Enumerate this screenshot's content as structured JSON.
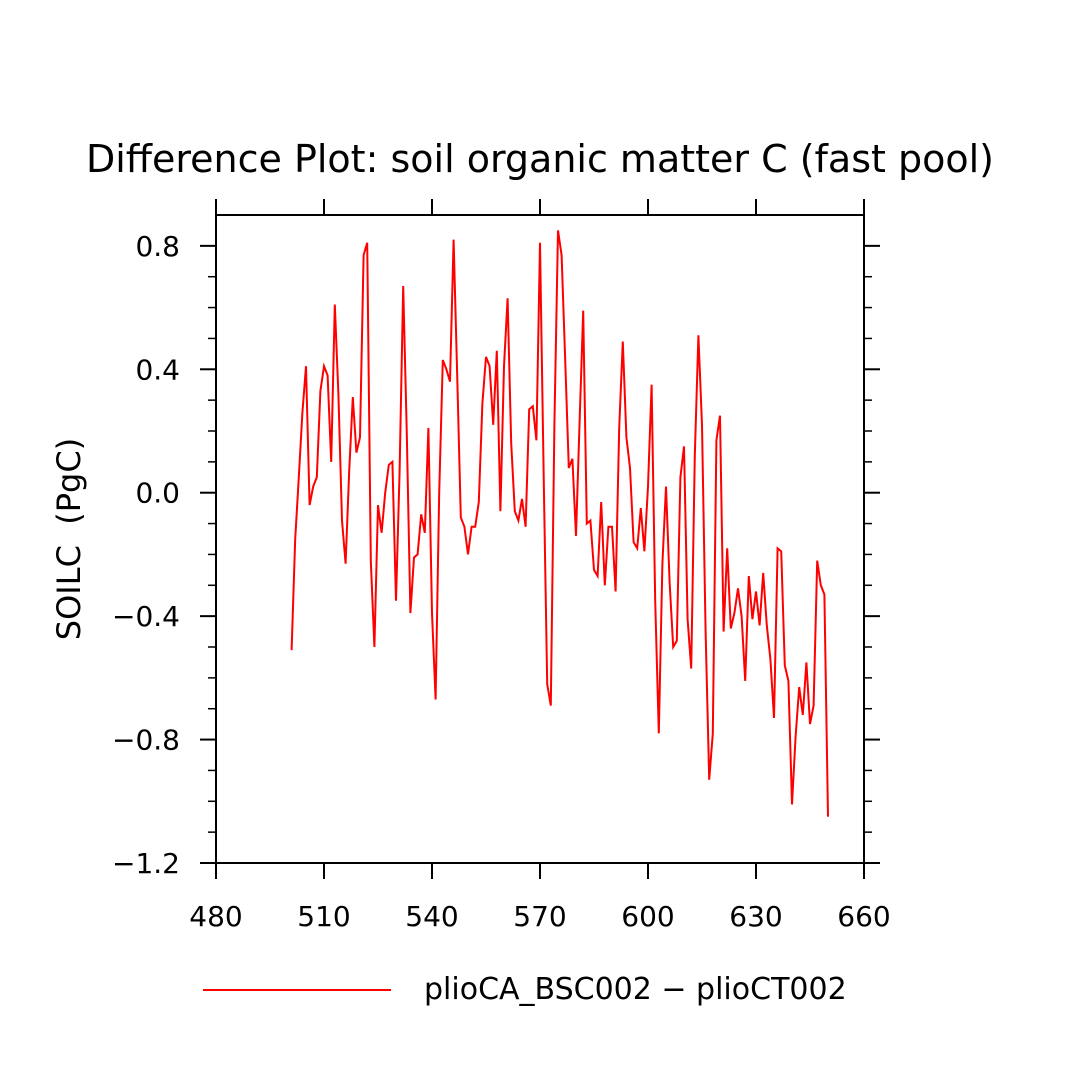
{
  "chart_data": {
    "type": "line",
    "title": "Difference Plot: soil organic matter C (fast pool)",
    "xlabel": "",
    "ylabel": "SOILC  (PgC)",
    "xlim": [
      480,
      660
    ],
    "ylim": [
      -1.2,
      0.9
    ],
    "x_ticks": [
      480,
      510,
      540,
      570,
      600,
      630,
      660
    ],
    "x_tick_labels": [
      "480",
      "510",
      "540",
      "570",
      "600",
      "630",
      "660"
    ],
    "y_ticks": [
      -1.2,
      -0.8,
      -0.4,
      0.0,
      0.4,
      0.8
    ],
    "y_tick_labels": [
      "−1.2",
      "−0.8",
      "−0.4",
      "0.0",
      "0.4",
      "0.8"
    ],
    "grid": false,
    "legend_position": "bottom",
    "series": [
      {
        "name": "plioCA_BSC002 − plioCT002",
        "color": "#ff0000",
        "x": [
          501,
          502,
          503,
          504,
          505,
          506,
          507,
          508,
          509,
          510,
          511,
          512,
          513,
          514,
          515,
          516,
          517,
          518,
          519,
          520,
          521,
          522,
          523,
          524,
          525,
          526,
          527,
          528,
          529,
          530,
          531,
          532,
          533,
          534,
          535,
          536,
          537,
          538,
          539,
          540,
          541,
          542,
          543,
          544,
          545,
          546,
          547,
          548,
          549,
          550,
          551,
          552,
          553,
          554,
          555,
          556,
          557,
          558,
          559,
          560,
          561,
          562,
          563,
          564,
          565,
          566,
          567,
          568,
          569,
          570,
          571,
          572,
          573,
          574,
          575,
          576,
          577,
          578,
          579,
          580,
          581,
          582,
          583,
          584,
          585,
          586,
          587,
          588,
          589,
          590,
          591,
          592,
          593,
          594,
          595,
          596,
          597,
          598,
          599,
          600,
          601,
          602,
          603,
          604,
          605,
          606,
          607,
          608,
          609,
          610,
          611,
          612,
          613,
          614,
          615,
          616,
          617,
          618,
          619,
          620,
          621,
          622,
          623,
          624,
          625,
          626,
          627,
          628,
          629,
          630,
          631,
          632,
          633,
          634,
          635,
          636,
          637,
          638,
          639,
          640,
          641,
          642,
          643,
          644,
          645,
          646,
          647,
          648,
          649,
          650
        ],
        "values": [
          -0.51,
          -0.15,
          0.05,
          0.26,
          0.41,
          -0.04,
          0.02,
          0.05,
          0.33,
          0.41,
          0.38,
          0.1,
          0.61,
          0.32,
          -0.09,
          -0.23,
          0.07,
          0.31,
          0.13,
          0.18,
          0.77,
          0.81,
          -0.22,
          -0.5,
          -0.04,
          -0.13,
          0.0,
          0.09,
          0.1,
          -0.35,
          0.07,
          0.67,
          0.19,
          -0.39,
          -0.21,
          -0.2,
          -0.07,
          -0.13,
          0.21,
          -0.39,
          -0.67,
          0.0,
          0.43,
          0.4,
          0.36,
          0.82,
          0.38,
          -0.08,
          -0.11,
          -0.2,
          -0.11,
          -0.11,
          -0.03,
          0.29,
          0.44,
          0.41,
          0.22,
          0.46,
          -0.06,
          0.41,
          0.63,
          0.16,
          -0.06,
          -0.09,
          -0.02,
          -0.11,
          0.27,
          0.28,
          0.17,
          0.81,
          0.07,
          -0.62,
          -0.69,
          0.22,
          0.85,
          0.77,
          0.43,
          0.08,
          0.11,
          -0.14,
          0.23,
          0.59,
          -0.1,
          -0.09,
          -0.25,
          -0.27,
          -0.03,
          -0.3,
          -0.11,
          -0.11,
          -0.32,
          0.21,
          0.49,
          0.18,
          0.08,
          -0.16,
          -0.18,
          -0.05,
          -0.19,
          0.02,
          0.35,
          -0.35,
          -0.78,
          -0.23,
          0.02,
          -0.29,
          -0.5,
          -0.48,
          0.05,
          0.15,
          -0.41,
          -0.57,
          0.12,
          0.51,
          0.22,
          -0.45,
          -0.93,
          -0.78,
          0.17,
          0.25,
          -0.45,
          -0.18,
          -0.44,
          -0.39,
          -0.31,
          -0.4,
          -0.61,
          -0.27,
          -0.41,
          -0.32,
          -0.43,
          -0.26,
          -0.43,
          -0.54,
          -0.73,
          -0.18,
          -0.19,
          -0.56,
          -0.61,
          -1.01,
          -0.79,
          -0.63,
          -0.72,
          -0.55,
          -0.75,
          -0.69,
          -0.22,
          -0.3,
          -0.33,
          -1.05
        ]
      }
    ]
  }
}
